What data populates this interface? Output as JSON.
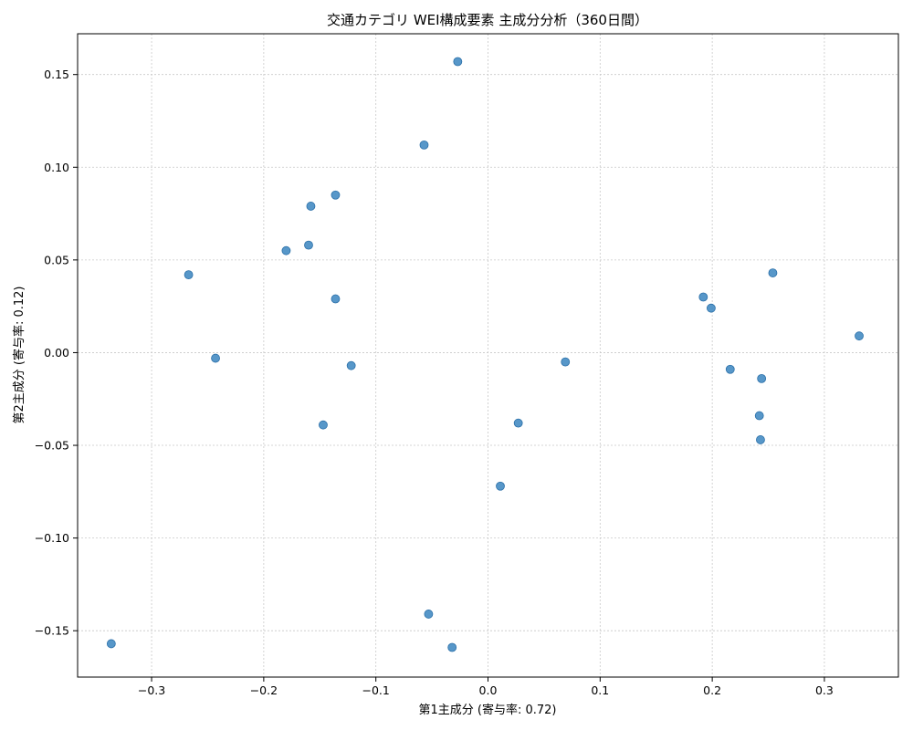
{
  "chart_data": {
    "type": "scatter",
    "title": "交通カテゴリ WEI構成要素 主成分分析（360日間）",
    "xlabel": "第1主成分 (寄与率: 0.72)",
    "ylabel": "第2主成分 (寄与率: 0.12)",
    "xlim": [
      -0.366,
      0.366
    ],
    "ylim": [
      -0.175,
      0.172
    ],
    "xticks": [
      -0.3,
      -0.2,
      -0.1,
      0.0,
      0.1,
      0.2,
      0.3
    ],
    "xtick_labels": [
      "−0.3",
      "−0.2",
      "−0.1",
      "0.0",
      "0.1",
      "0.2",
      "0.3"
    ],
    "yticks": [
      -0.15,
      -0.1,
      -0.05,
      0.0,
      0.05,
      0.1,
      0.15
    ],
    "ytick_labels": [
      "−0.15",
      "−0.10",
      "−0.05",
      "0.00",
      "0.05",
      "0.10",
      "0.15"
    ],
    "grid": true,
    "marker_color": "#3a85c0",
    "points": [
      {
        "x": -0.027,
        "y": 0.157
      },
      {
        "x": -0.057,
        "y": 0.112
      },
      {
        "x": -0.136,
        "y": 0.085
      },
      {
        "x": -0.158,
        "y": 0.079
      },
      {
        "x": -0.16,
        "y": 0.058
      },
      {
        "x": -0.18,
        "y": 0.055
      },
      {
        "x": -0.267,
        "y": 0.042
      },
      {
        "x": -0.136,
        "y": 0.029
      },
      {
        "x": -0.243,
        "y": -0.003
      },
      {
        "x": -0.122,
        "y": -0.007
      },
      {
        "x": -0.147,
        "y": -0.039
      },
      {
        "x": 0.069,
        "y": -0.005
      },
      {
        "x": 0.027,
        "y": -0.038
      },
      {
        "x": 0.011,
        "y": -0.072
      },
      {
        "x": -0.053,
        "y": -0.141
      },
      {
        "x": -0.032,
        "y": -0.159
      },
      {
        "x": -0.336,
        "y": -0.157
      },
      {
        "x": 0.254,
        "y": 0.043
      },
      {
        "x": 0.192,
        "y": 0.03
      },
      {
        "x": 0.199,
        "y": 0.024
      },
      {
        "x": 0.331,
        "y": 0.009
      },
      {
        "x": 0.216,
        "y": -0.009
      },
      {
        "x": 0.244,
        "y": -0.014
      },
      {
        "x": 0.242,
        "y": -0.034
      },
      {
        "x": 0.243,
        "y": -0.047
      }
    ]
  }
}
